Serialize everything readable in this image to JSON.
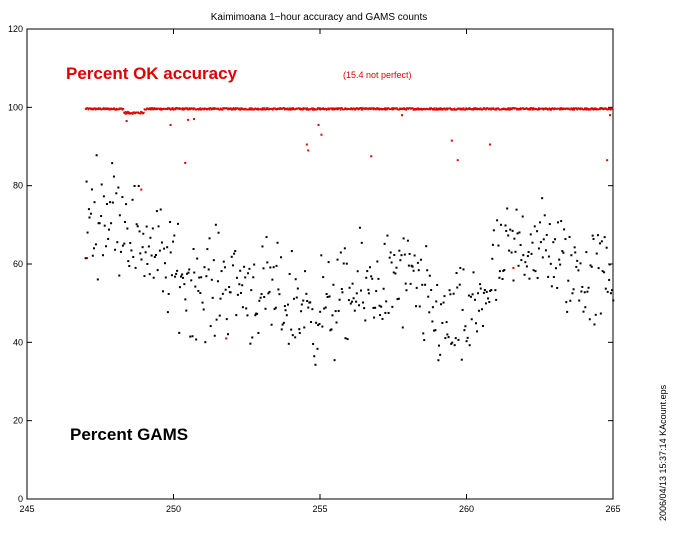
{
  "chart_data": {
    "type": "scatter",
    "title": "Kaimimoana 1−hour accuracy and GAMS counts",
    "xlim": [
      245,
      265
    ],
    "ylim": [
      0,
      120
    ],
    "x_ticks": [
      245,
      250,
      255,
      260,
      265
    ],
    "y_ticks": [
      0,
      20,
      40,
      60,
      80,
      100,
      120
    ],
    "grid": false,
    "annotations": {
      "accuracy_label": "Percent OK accuracy",
      "not_perfect_note": "(15.4 not perfect)",
      "gams_label": "Percent GAMS"
    },
    "side_stamp": "2006/04/13 15:37:14   KAcount.eps",
    "series": [
      {
        "color": "#e00000",
        "x_start": 247.0,
        "x_end": 265.0,
        "baseline": 99.6,
        "dip": {
          "from": 248.3,
          "to": 249.0,
          "value": 98.6
        },
        "outliers": [
          {
            "x": 247.05,
            "y": 61.5
          },
          {
            "x": 248.4,
            "y": 96.5
          },
          {
            "x": 248.9,
            "y": 79.0
          },
          {
            "x": 249.9,
            "y": 95.5
          },
          {
            "x": 250.4,
            "y": 85.8
          },
          {
            "x": 250.5,
            "y": 96.8
          },
          {
            "x": 250.7,
            "y": 97.0
          },
          {
            "x": 251.8,
            "y": 41.0
          },
          {
            "x": 254.55,
            "y": 90.5
          },
          {
            "x": 254.6,
            "y": 89.0
          },
          {
            "x": 254.95,
            "y": 95.5
          },
          {
            "x": 255.05,
            "y": 93.0
          },
          {
            "x": 256.75,
            "y": 87.5
          },
          {
            "x": 257.8,
            "y": 98.0
          },
          {
            "x": 259.5,
            "y": 91.5
          },
          {
            "x": 259.7,
            "y": 86.5
          },
          {
            "x": 260.8,
            "y": 90.5
          },
          {
            "x": 261.6,
            "y": 59.0
          },
          {
            "x": 264.8,
            "y": 86.5
          },
          {
            "x": 264.9,
            "y": 98.0
          }
        ]
      },
      {
        "color": "#000000",
        "x_start": 247.0,
        "x_end": 265.0,
        "count": 520,
        "mean_profile": [
          [
            247.0,
            72
          ],
          [
            248.0,
            74
          ],
          [
            249.0,
            66
          ],
          [
            250.0,
            58
          ],
          [
            251.0,
            54
          ],
          [
            252.0,
            56
          ],
          [
            253.0,
            52
          ],
          [
            254.0,
            50
          ],
          [
            255.0,
            48
          ],
          [
            256.0,
            51
          ],
          [
            257.0,
            55
          ],
          [
            258.0,
            56
          ],
          [
            259.0,
            46
          ],
          [
            260.0,
            44
          ],
          [
            261.0,
            58
          ],
          [
            262.0,
            66
          ],
          [
            263.0,
            62
          ],
          [
            264.0,
            56
          ],
          [
            265.0,
            58
          ]
        ],
        "spread": 13,
        "y_min": 22,
        "y_max": 92
      }
    ]
  }
}
